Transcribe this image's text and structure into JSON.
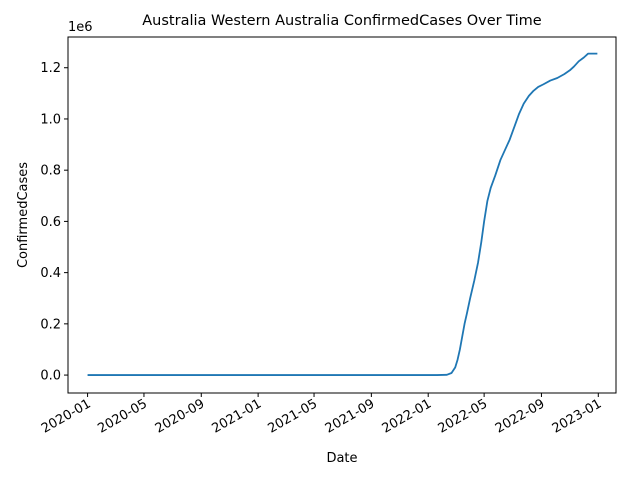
{
  "chart_data": {
    "type": "line",
    "title": "Australia Western Australia ConfirmedCases Over Time",
    "xlabel": "Date",
    "ylabel": "ConfirmedCases",
    "y_offset_label": "1e6",
    "y_scale": 1000000,
    "grid": false,
    "legend": "none",
    "xlim": [
      "2019-11-20",
      "2023-02-08"
    ],
    "ylim": [
      -70000,
      1320000
    ],
    "x_ticks": [
      "2020-01-01",
      "2020-05-01",
      "2020-09-01",
      "2021-01-01",
      "2021-05-01",
      "2021-09-01",
      "2022-01-01",
      "2022-05-01",
      "2022-09-01",
      "2023-01-01"
    ],
    "x_tick_labels": [
      "2020-01",
      "2020-05",
      "2020-09",
      "2021-01",
      "2021-05",
      "2021-09",
      "2022-01",
      "2022-05",
      "2022-09",
      "2023-01"
    ],
    "y_ticks": [
      0,
      200000,
      400000,
      600000,
      800000,
      1000000,
      1200000
    ],
    "y_tick_labels": [
      "0.0",
      "0.2",
      "0.4",
      "0.6",
      "0.8",
      "1.0",
      "1.2"
    ],
    "series": [
      {
        "color": "#1f77b4",
        "points": [
          [
            "2020-01-01",
            0
          ],
          [
            "2021-06-01",
            0
          ],
          [
            "2022-01-20",
            0
          ],
          [
            "2022-02-10",
            1000
          ],
          [
            "2022-02-20",
            8000
          ],
          [
            "2022-02-28",
            30000
          ],
          [
            "2022-03-05",
            60000
          ],
          [
            "2022-03-10",
            100000
          ],
          [
            "2022-03-15",
            150000
          ],
          [
            "2022-03-20",
            200000
          ],
          [
            "2022-03-25",
            240000
          ],
          [
            "2022-04-01",
            300000
          ],
          [
            "2022-04-10",
            370000
          ],
          [
            "2022-04-18",
            440000
          ],
          [
            "2022-04-25",
            520000
          ],
          [
            "2022-05-01",
            600000
          ],
          [
            "2022-05-08",
            680000
          ],
          [
            "2022-05-15",
            730000
          ],
          [
            "2022-05-25",
            780000
          ],
          [
            "2022-06-05",
            840000
          ],
          [
            "2022-06-15",
            880000
          ],
          [
            "2022-06-25",
            920000
          ],
          [
            "2022-07-05",
            970000
          ],
          [
            "2022-07-15",
            1020000
          ],
          [
            "2022-07-25",
            1060000
          ],
          [
            "2022-08-05",
            1090000
          ],
          [
            "2022-08-15",
            1110000
          ],
          [
            "2022-08-25",
            1125000
          ],
          [
            "2022-09-05",
            1135000
          ],
          [
            "2022-09-20",
            1150000
          ],
          [
            "2022-10-05",
            1160000
          ],
          [
            "2022-10-20",
            1175000
          ],
          [
            "2022-11-01",
            1190000
          ],
          [
            "2022-11-10",
            1205000
          ],
          [
            "2022-11-20",
            1225000
          ],
          [
            "2022-12-01",
            1240000
          ],
          [
            "2022-12-10",
            1255000
          ],
          [
            "2022-12-30",
            1255000
          ]
        ]
      }
    ]
  }
}
